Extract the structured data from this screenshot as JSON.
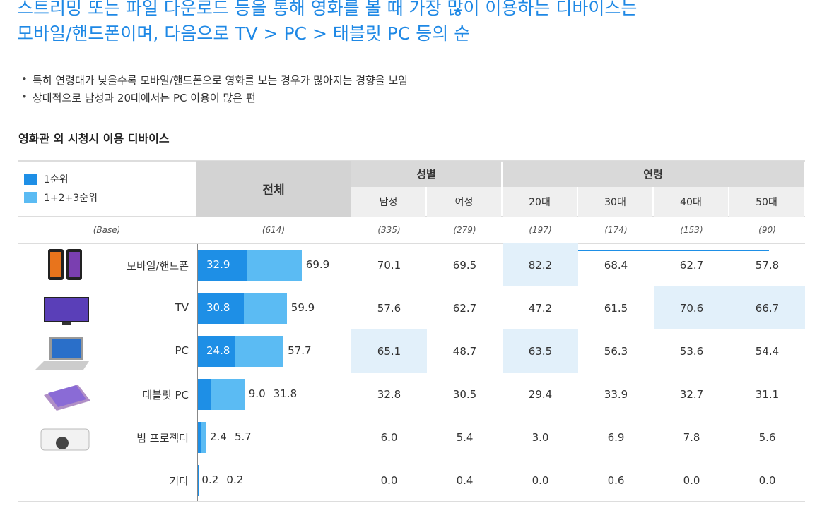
{
  "header": {
    "title_lines": [
      "스트리밍 또는 파일 다운로드 등을 통해 영화를 볼 때 가장 많이 이용하는 디바이스는",
      "모바일/핸드폰이며, 다음으로 TV > PC > 태블릿 PC 등의 순"
    ],
    "bullets": [
      "특히 연령대가 낮을수록 모바일/핸드폰으로 영화를 보는 경우가 많아지는 경향을 보임",
      "상대적으로 남성과 20대에서는 PC 이용이 많은 편"
    ]
  },
  "table": {
    "title": "영화관 외 시청시 이용 디바이스",
    "legend": [
      {
        "name": "1순위",
        "color": "#1e8fe6"
      },
      {
        "name": "1+2+3순위",
        "color": "#5bbbf3"
      }
    ],
    "total_header": "전체",
    "groups": [
      {
        "name": "성별",
        "columns": [
          "남성",
          "여성"
        ]
      },
      {
        "name": "연령",
        "columns": [
          "20대",
          "30대",
          "40대",
          "50대"
        ]
      }
    ],
    "base_label": "(Base)",
    "total_base": "(614)",
    "bases": [
      "(335)",
      "(279)",
      "(197)",
      "(174)",
      "(153)",
      "(90)"
    ],
    "highlight_color": "#e2f0fa",
    "rows": [
      {
        "label": "모바일/핸드폰",
        "top1": 32.9,
        "total": 69.9,
        "values": [
          70.1,
          69.5,
          82.2,
          68.4,
          62.7,
          57.8
        ],
        "value_labels": [
          "70.1",
          "69.5",
          "82.2",
          "68.4",
          "62.7",
          "57.8"
        ],
        "highlight": [
          2
        ]
      },
      {
        "label": "TV",
        "top1": 30.8,
        "total": 59.9,
        "values": [
          57.6,
          62.7,
          47.2,
          61.5,
          70.6,
          66.7
        ],
        "value_labels": [
          "57.6",
          "62.7",
          "47.2",
          "61.5",
          "70.6",
          "66.7"
        ],
        "highlight": [
          4,
          5
        ]
      },
      {
        "label": "PC",
        "top1": 24.8,
        "total": 57.7,
        "values": [
          65.1,
          48.7,
          63.5,
          56.3,
          53.6,
          54.4
        ],
        "value_labels": [
          "65.1",
          "48.7",
          "63.5",
          "56.3",
          "53.6",
          "54.4"
        ],
        "highlight": [
          0,
          2
        ]
      },
      {
        "label": "태블릿 PC",
        "top1": 9.0,
        "total": 31.8,
        "top1_label": "9.0",
        "values": [
          32.8,
          30.5,
          29.4,
          33.9,
          32.7,
          31.1
        ],
        "value_labels": [
          "32.8",
          "30.5",
          "29.4",
          "33.9",
          "32.7",
          "31.1"
        ],
        "highlight": []
      },
      {
        "label": "빔 프로젝터",
        "top1": 2.4,
        "total": 5.7,
        "values": [
          6.0,
          5.4,
          3.0,
          6.9,
          7.8,
          5.6
        ],
        "value_labels": [
          "6.0",
          "5.4",
          "3.0",
          "6.9",
          "7.8",
          "5.6"
        ],
        "highlight": []
      },
      {
        "label": "기타",
        "top1": 0.2,
        "total": 0.2,
        "values": [
          0.0,
          0.4,
          0.0,
          0.6,
          0.0,
          0.0
        ],
        "value_labels": [
          "0.0",
          "0.4",
          "0.0",
          "0.6",
          "0.0",
          "0.0"
        ],
        "highlight": []
      }
    ]
  }
}
